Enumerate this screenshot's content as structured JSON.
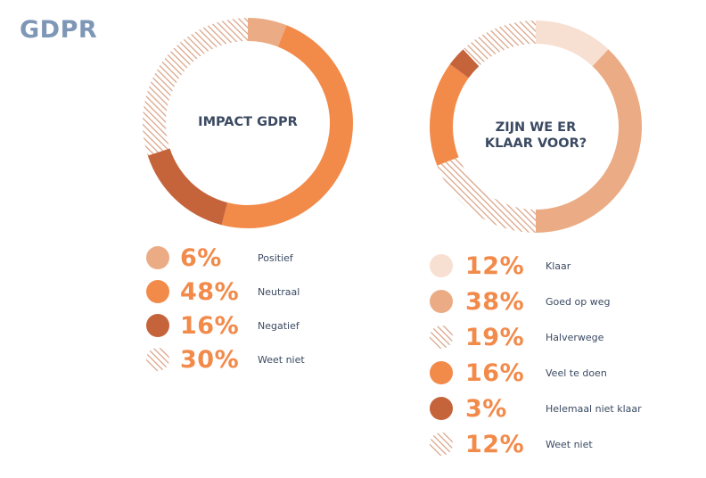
{
  "page": {
    "title": "GDPR"
  },
  "colors": {
    "light": "#f7dfd1",
    "salmon": "#ebac85",
    "orange": "#f28a4a",
    "rust": "#c5643b",
    "hatch": "#d8a083"
  },
  "chart_data": [
    {
      "type": "pie",
      "title": "IMPACT GDPR",
      "categories": [
        "Positief",
        "Neutraal",
        "Negatief",
        "Weet niet"
      ],
      "values": [
        6,
        48,
        16,
        30
      ],
      "value_labels": [
        "6%",
        "48%",
        "16%",
        "30%"
      ],
      "styles": [
        "salmon",
        "orange",
        "rust",
        "hatch"
      ],
      "donut": true
    },
    {
      "type": "pie",
      "title": "ZIJN WE ER KLAAR VOOR?",
      "categories": [
        "Klaar",
        "Goed op weg",
        "Halverwege",
        "Veel te doen",
        "Helemaal niet klaar",
        "Weet niet"
      ],
      "values": [
        12,
        38,
        19,
        16,
        3,
        12
      ],
      "value_labels": [
        "12%",
        "38%",
        "19%",
        "16%",
        "3%",
        "12%"
      ],
      "styles": [
        "light",
        "salmon",
        "hatch",
        "orange",
        "rust",
        "hatch"
      ],
      "donut": true
    }
  ]
}
